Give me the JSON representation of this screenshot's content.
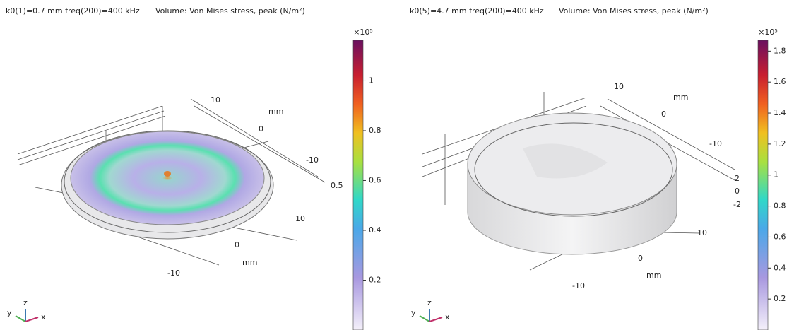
{
  "panels": [
    {
      "title": "k0(1)=0.7 mm freq(200)=400 kHz",
      "subtitle": "Volume: Von Mises stress, peak (N/m²)",
      "colorbar": {
        "multiplier": "×10⁵",
        "lim": [
          0,
          1.163
        ],
        "ticks": [
          0.2,
          0.4,
          0.6,
          0.8,
          1
        ]
      },
      "axis_labels": [
        "10",
        "mm",
        "0",
        "-10",
        "0.5",
        "10",
        "0",
        "mm",
        "-10"
      ],
      "triad": [
        "z",
        "y",
        "x"
      ]
    },
    {
      "title": "k0(5)=4.7 mm freq(200)=400 kHz",
      "subtitle": "Volume: Von Mises stress, peak (N/m²)",
      "colorbar": {
        "multiplier": "×10⁵",
        "lim": [
          0,
          1.87
        ],
        "ticks": [
          0.2,
          0.4,
          0.6,
          0.8,
          1,
          1.2,
          1.4,
          1.6,
          1.8
        ]
      },
      "axis_labels": [
        "10",
        "mm",
        "0",
        "-10",
        "2",
        "0",
        "-2",
        "10",
        "0",
        "mm",
        "-10"
      ],
      "triad": [
        "z",
        "y",
        "x"
      ]
    }
  ]
}
